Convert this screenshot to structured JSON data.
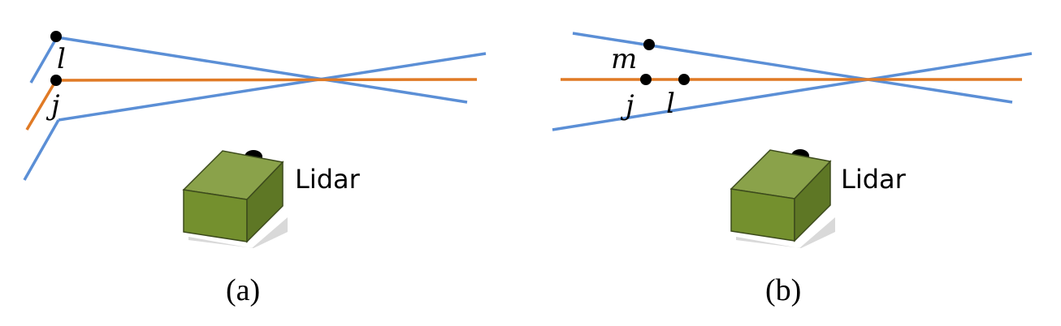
{
  "colors": {
    "beam": "#5b8fd6",
    "line": "#e07a25",
    "point": "#000000",
    "lidar_top": "#8aa24a",
    "lidar_front": "#74902e",
    "lidar_side": "#5e7725"
  },
  "panel_a": {
    "caption": "(a)",
    "lidar_label": "Lidar",
    "points": {
      "l": "l",
      "j": "j"
    }
  },
  "panel_b": {
    "caption": "(b)",
    "lidar_label": "Lidar",
    "points": {
      "m": "m",
      "j": "j",
      "l": "l"
    }
  }
}
